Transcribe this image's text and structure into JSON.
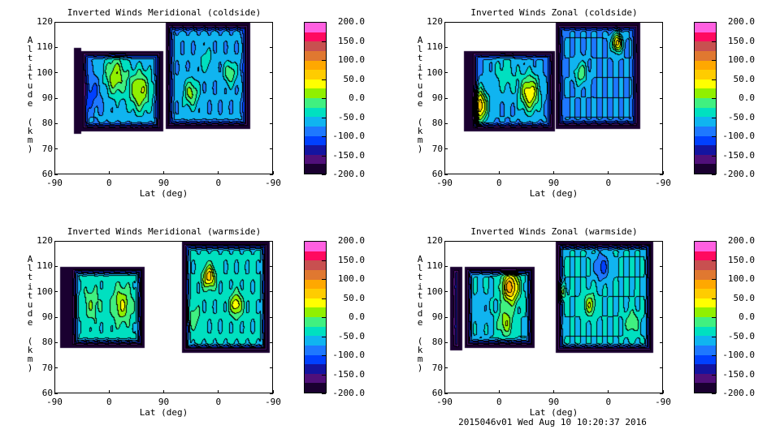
{
  "chart_data": [
    {
      "type": "heatmap",
      "title": "Inverted Winds Meridional (coldside)",
      "xlabel": "Lat (deg)",
      "ylabel": "Altitude (km)",
      "xticks": [
        "-90",
        "0",
        "90",
        "0",
        "-90"
      ],
      "yticks": [
        "60",
        "70",
        "80",
        "90",
        "100",
        "110",
        "120"
      ],
      "ylim": [
        60,
        120
      ],
      "colorbar": {
        "ticks": [
          "200.0",
          "150.0",
          "100.0",
          "50.0",
          "0.0",
          "-50.0",
          "-100.0",
          "-150.0",
          "-200.0"
        ],
        "range": [
          -200,
          200
        ]
      }
    },
    {
      "type": "heatmap",
      "title": "Inverted Winds Zonal (coldside)",
      "xlabel": "Lat (deg)",
      "ylabel": "Altitude (km)",
      "xticks": [
        "-90",
        "0",
        "90",
        "0",
        "-90"
      ],
      "yticks": [
        "60",
        "70",
        "80",
        "90",
        "100",
        "110",
        "120"
      ],
      "ylim": [
        60,
        120
      ],
      "colorbar": {
        "ticks": [
          "200.0",
          "150.0",
          "100.0",
          "50.0",
          "0.0",
          "-50.0",
          "-100.0",
          "-150.0",
          "-200.0"
        ],
        "range": [
          -200,
          200
        ]
      }
    },
    {
      "type": "heatmap",
      "title": "Inverted Winds Meridional (warmside)",
      "xlabel": "Lat (deg)",
      "ylabel": "Altitude (km)",
      "xticks": [
        "-90",
        "0",
        "90",
        "0",
        "-90"
      ],
      "yticks": [
        "60",
        "70",
        "80",
        "90",
        "100",
        "110",
        "120"
      ],
      "ylim": [
        60,
        120
      ],
      "colorbar": {
        "ticks": [
          "200.0",
          "150.0",
          "100.0",
          "50.0",
          "0.0",
          "-50.0",
          "-100.0",
          "-150.0",
          "-200.0"
        ],
        "range": [
          -200,
          200
        ]
      }
    },
    {
      "type": "heatmap",
      "title": "Inverted Winds Zonal (warmside)",
      "xlabel": "Lat (deg)",
      "ylabel": "Altitude (km)",
      "xticks": [
        "-90",
        "0",
        "90",
        "0",
        "-90"
      ],
      "yticks": [
        "60",
        "70",
        "80",
        "90",
        "100",
        "110",
        "120"
      ],
      "ylim": [
        60,
        120
      ],
      "colorbar": {
        "ticks": [
          "200.0",
          "150.0",
          "100.0",
          "50.0",
          "0.0",
          "-50.0",
          "-100.0",
          "-150.0",
          "-200.0"
        ],
        "range": [
          -200,
          200
        ]
      }
    }
  ],
  "colormap": [
    "#1a0030",
    "#50107a",
    "#1414a0",
    "#0040ff",
    "#1e78ff",
    "#10b4f0",
    "#00e0c0",
    "#40f080",
    "#90f000",
    "#ffff00",
    "#ffcc00",
    "#ffa800",
    "#e07830",
    "#c85050",
    "#ff0a60",
    "#ff60e0"
  ],
  "footer": "2015046v01 Wed Aug 10 10:20:37 2016"
}
